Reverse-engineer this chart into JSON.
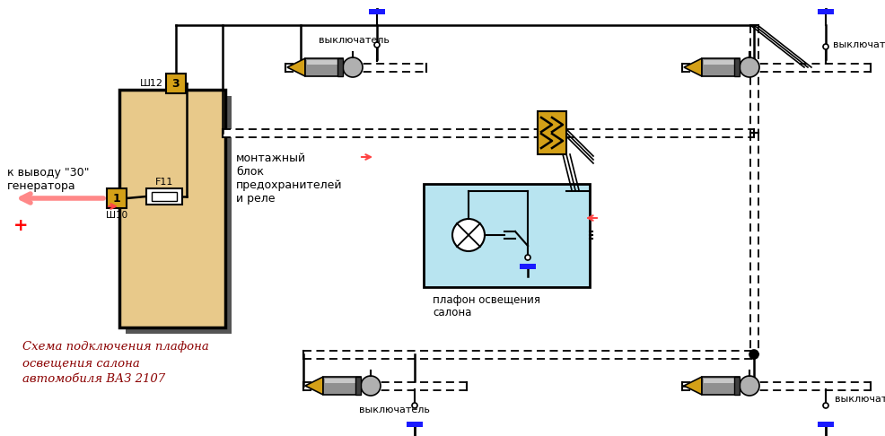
{
  "title_line1": "Схема подключения плафона",
  "title_line2": "освещения салона",
  "title_line3": "автомобиля ВАЗ 2107",
  "label_montage": "монтажный\nблок\nпредохранителей\nи реле",
  "label_plafon_line1": "плафон освещения",
  "label_plafon_line2": "салона",
  "label_generator": "к выводу \"30\"\nгенератора",
  "label_sh12": "Ш12",
  "label_sh10": "Ш10",
  "label_3": "3",
  "label_1": "1",
  "label_f11": "F11",
  "label_vykl": "выключатель",
  "bg_color": "#ffffff",
  "box_color": "#e8c98a",
  "connector_color": "#d4a017",
  "wire_color": "#000000",
  "blue_mark_color": "#1a1aff",
  "light_blue": "#b8e4f0",
  "plus_color": "#ff0000",
  "title_color": "#8b0000",
  "red_arrow": "#ff4444",
  "gray_body": "#909090",
  "gray_light": "#c8c8c8",
  "gray_bulb": "#b0b0b0"
}
